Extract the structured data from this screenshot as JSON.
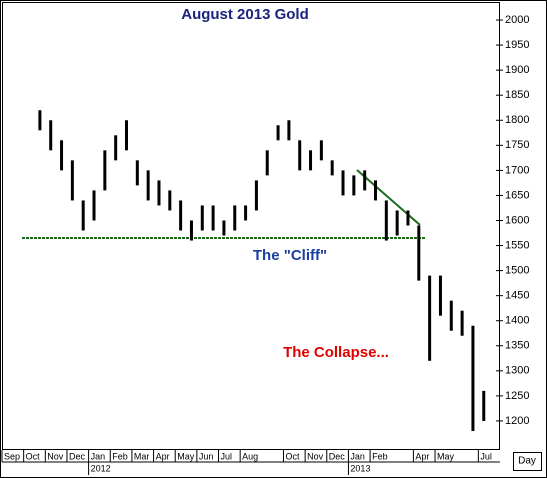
{
  "chart_data": {
    "type": "range-bar",
    "title": "August 2013 Gold",
    "annotations": [
      "The \"Cliff\"",
      "The Collapse..."
    ],
    "categories": [
      "Sep",
      null,
      "Oct",
      null,
      "Nov",
      null,
      "Dec",
      null,
      "Jan",
      null,
      "Feb",
      null,
      "Mar",
      null,
      "Apr",
      null,
      "May",
      null,
      "Jun",
      null,
      "Jul",
      null,
      "Aug",
      null,
      null,
      null,
      "Oct",
      null,
      "Nov",
      null,
      "Dec",
      null,
      "Jan",
      null,
      "Feb",
      null,
      null,
      null,
      "Apr",
      null,
      "May",
      null,
      null,
      null,
      "Jul",
      null
    ],
    "years": [
      "2012",
      "2013"
    ],
    "period": "Day",
    "high": [
      null,
      null,
      null,
      1820,
      1800,
      1760,
      1720,
      1640,
      1660,
      1740,
      1770,
      1800,
      1720,
      1700,
      1680,
      1660,
      1640,
      1600,
      1630,
      1630,
      1600,
      1630,
      1630,
      1680,
      1740,
      1790,
      1800,
      1760,
      1740,
      1760,
      1720,
      1700,
      1690,
      1700,
      1680,
      1640,
      1620,
      1620,
      1590,
      1490,
      1490,
      1440,
      1420,
      1390,
      1260,
      null
    ],
    "low": [
      null,
      null,
      null,
      1780,
      1740,
      1700,
      1640,
      1580,
      1600,
      1660,
      1720,
      1740,
      1670,
      1640,
      1630,
      1620,
      1580,
      1560,
      1580,
      1580,
      1570,
      1580,
      1600,
      1620,
      1690,
      1760,
      1760,
      1700,
      1700,
      1720,
      1690,
      1650,
      1650,
      1660,
      1640,
      1560,
      1570,
      1590,
      1480,
      1320,
      1410,
      1380,
      1370,
      1180,
      1200,
      null
    ],
    "color": "#000000",
    "ylim": [
      1142,
      2036
    ],
    "yticks": [
      1200,
      1250,
      1300,
      1350,
      1400,
      1450,
      1500,
      1550,
      1600,
      1650,
      1700,
      1750,
      1800,
      1850,
      1900,
      1950,
      2000
    ],
    "grid": false
  }
}
